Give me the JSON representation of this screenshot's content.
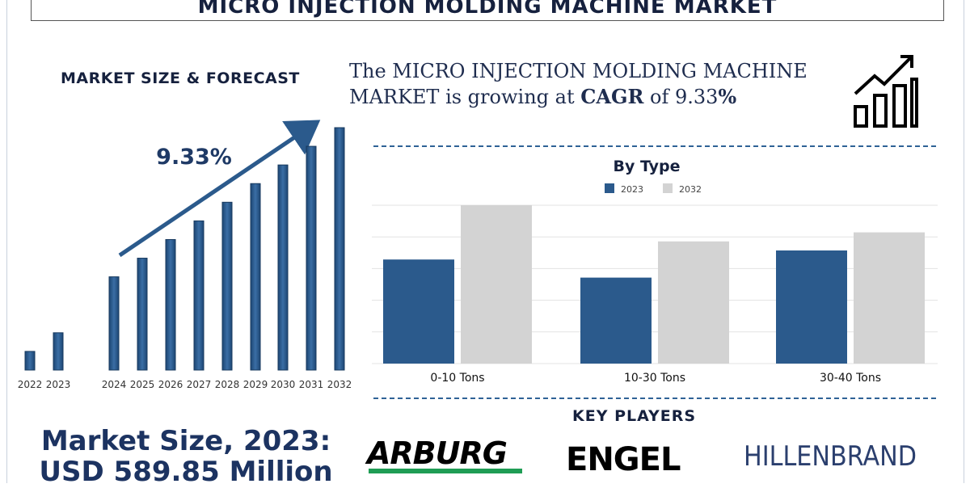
{
  "title": "MICRO INJECTION MOLDING MACHINE MARKET",
  "left_heading": "MARKET SIZE & FORECAST",
  "headline": {
    "part1": "The MICRO INJECTION MOLDING MACHINE MARKET is growing at ",
    "cagr_word": "CAGR",
    "part2": " of 9.33",
    "percent": "%"
  },
  "colors": {
    "navy": "#2b5a8c",
    "light_gray": "#d3d3d3",
    "dark_text": "#16213e",
    "arburg_green": "#1f9d55"
  },
  "chart_data": [
    {
      "type": "bar",
      "title": "",
      "annotation": "9.33%",
      "categories": [
        "2022",
        "2023",
        "2024",
        "2025",
        "2026",
        "2027",
        "2028",
        "2029",
        "2030",
        "2031",
        "2032"
      ],
      "values": [
        0.08,
        0.16,
        0.4,
        0.48,
        0.56,
        0.64,
        0.72,
        0.8,
        0.88,
        0.96,
        1.04
      ],
      "grid": false,
      "value_axis_shown": false
    },
    {
      "type": "bar",
      "title": "By Type",
      "categories": [
        "0-10 Tons",
        "10-30 Tons",
        "30-40 Tons"
      ],
      "series": [
        {
          "name": "2023",
          "values": [
            2.3,
            1.9,
            2.5
          ]
        },
        {
          "name": "2032",
          "values": [
            3.5,
            2.7,
            2.9
          ]
        }
      ],
      "ylim": [
        0,
        3.5
      ],
      "grid": true,
      "legend": "top-center"
    }
  ],
  "market_size": {
    "line1": "Market Size, 2023:",
    "line2": "USD 589.85 Million"
  },
  "key_players": {
    "heading": "KEY PLAYERS",
    "logos": [
      {
        "name": "ARBURG",
        "icon": "arburg-logo"
      },
      {
        "name": "ENGEL",
        "icon": "engel-logo"
      },
      {
        "name": "HILLENBRAND",
        "icon": "hillenbrand-logo"
      }
    ]
  },
  "icons": {
    "growth": "growth-chart-icon"
  }
}
